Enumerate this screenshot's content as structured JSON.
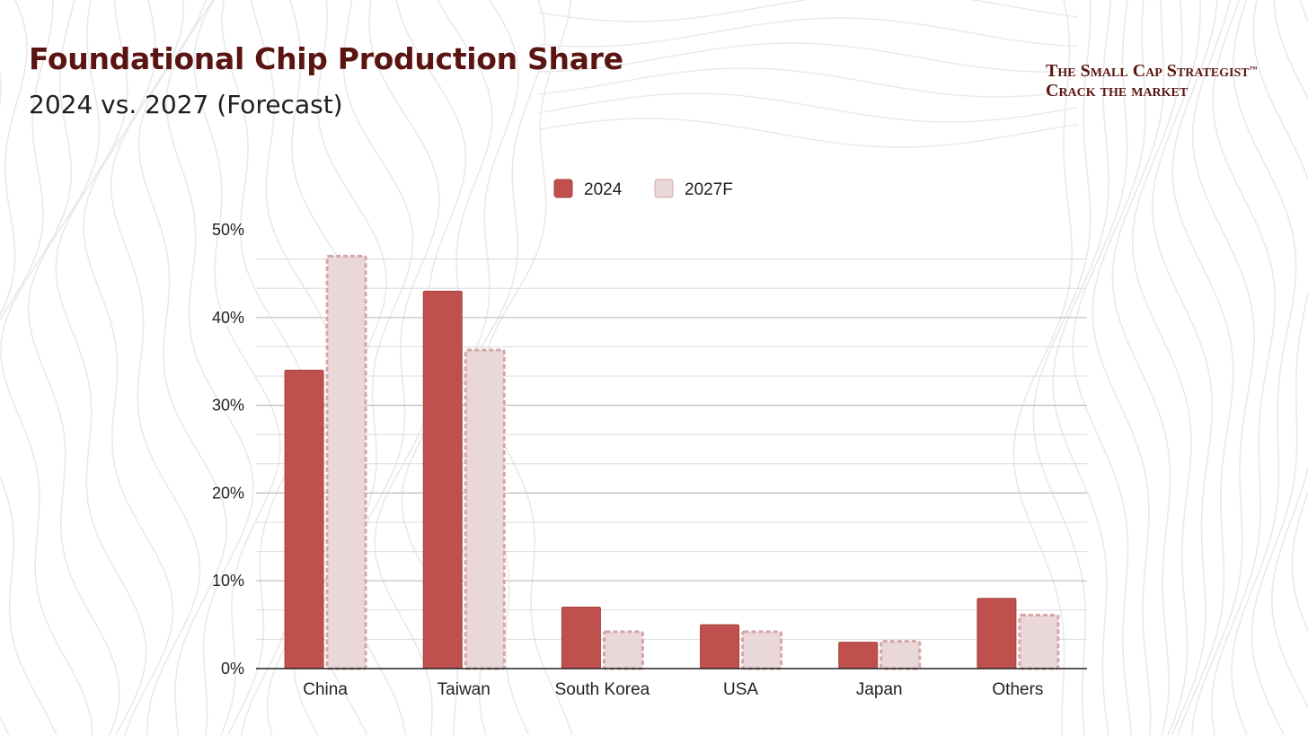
{
  "header": {
    "title": "Foundational Chip Production Share",
    "subtitle": "2024 vs. 2027 (Forecast)"
  },
  "brand": {
    "line1": "The Small Cap Strategist",
    "trademark": "™",
    "line2": "Crack the market"
  },
  "colors": {
    "series_2024": "#c0504d",
    "series_2027": "#ead8d8",
    "series_2027_border": "#d4a6a9",
    "title": "#5a1512",
    "contour": "#e9e9e9"
  },
  "chart_data": {
    "type": "bar",
    "categories": [
      "China",
      "Taiwan",
      "South Korea",
      "USA",
      "Japan",
      "Others"
    ],
    "series": [
      {
        "name": "2024",
        "values": [
          34,
          43,
          7,
          5,
          3,
          8
        ]
      },
      {
        "name": "2027F",
        "values": [
          47,
          36.3,
          4.2,
          4.2,
          3.1,
          6.1
        ]
      }
    ],
    "yticks": [
      "0%",
      "10%",
      "20%",
      "30%",
      "40%",
      "50%"
    ],
    "ylim": [
      0,
      50
    ],
    "grid": true,
    "legend": "top-center"
  }
}
